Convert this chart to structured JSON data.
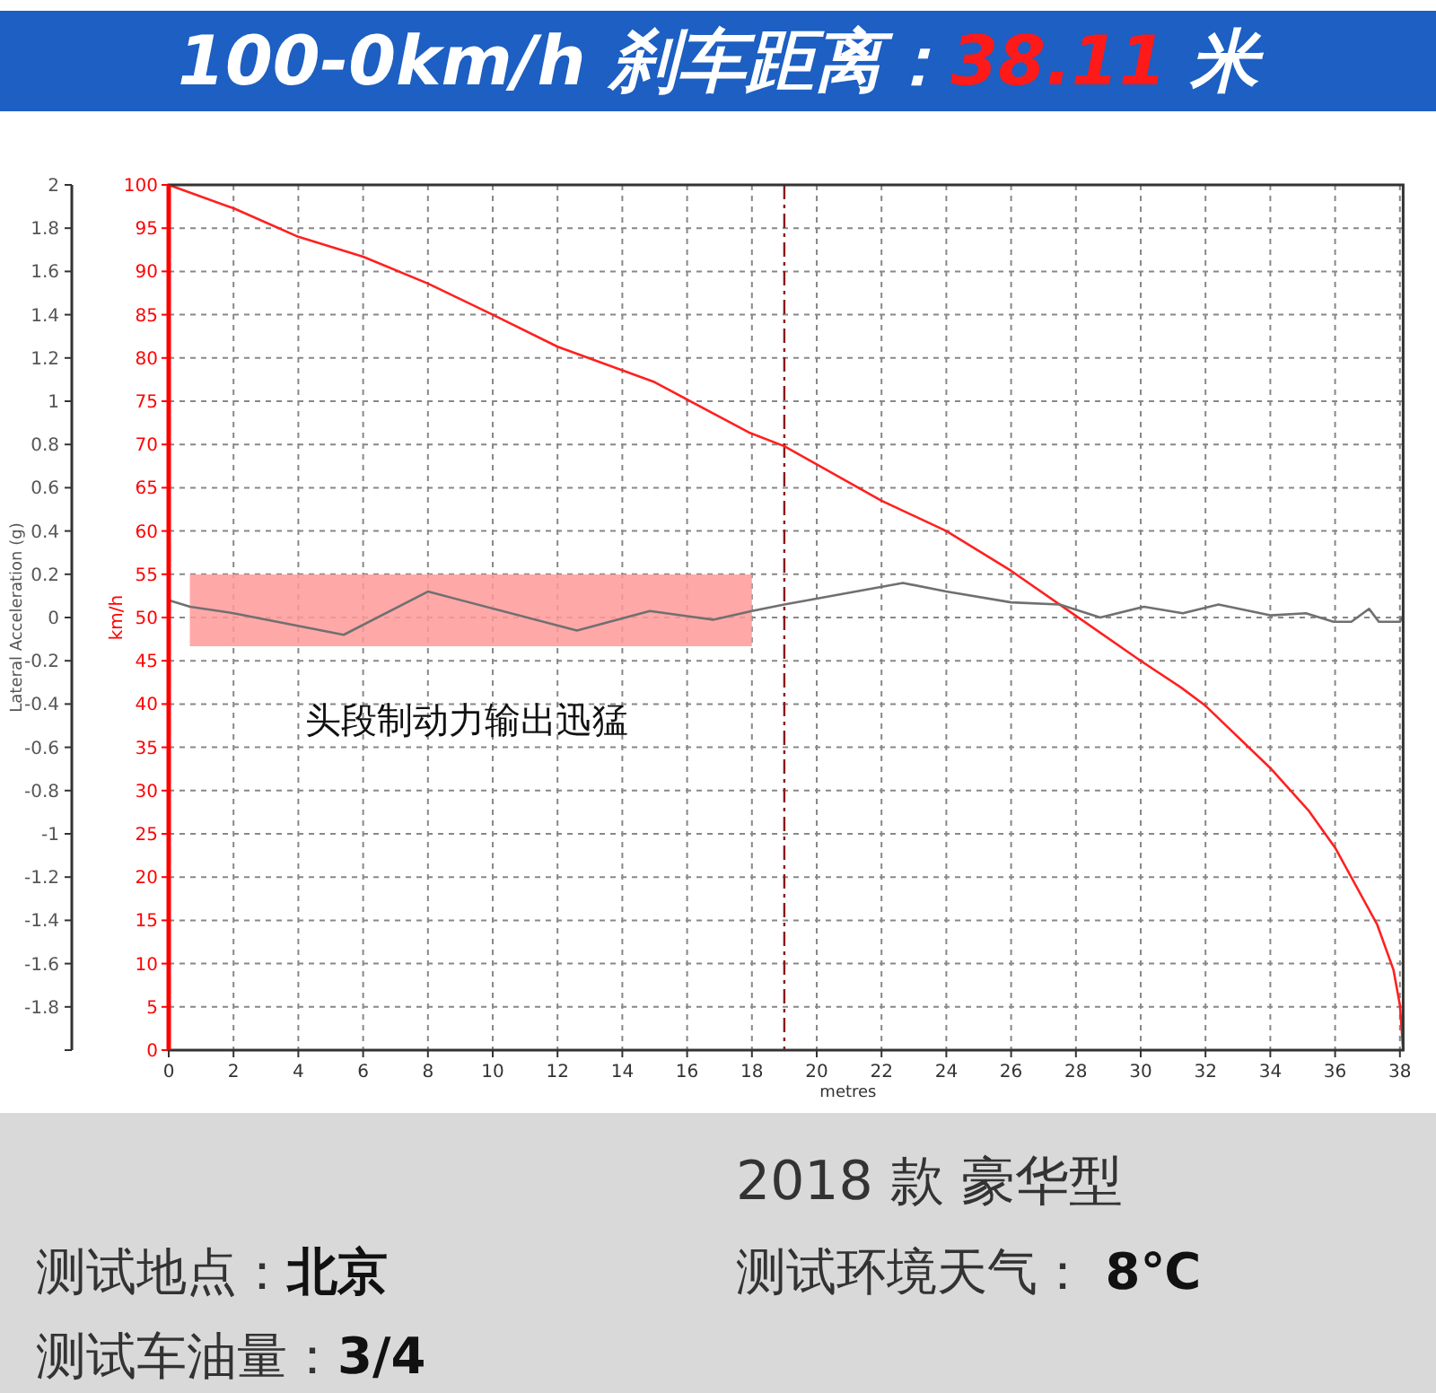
{
  "chart_data": {
    "type": "line",
    "title": "100-0km/h 刹车距离：38.11 米",
    "xlabel": "metres",
    "ylabel": "km/h",
    "y2label": "Lateral Acceleration (g)",
    "xlim": [
      0,
      38.1
    ],
    "xticks": [
      0,
      2,
      4,
      6,
      8,
      10,
      12,
      14,
      16,
      18,
      20,
      22,
      24,
      26,
      28,
      30,
      32,
      34,
      36,
      38
    ],
    "ylim": [
      0,
      100
    ],
    "yticks": [
      0,
      5,
      10,
      15,
      20,
      25,
      30,
      35,
      40,
      45,
      50,
      55,
      60,
      65,
      70,
      75,
      80,
      85,
      90,
      95,
      100
    ],
    "y2lim": [
      -2,
      2
    ],
    "y2ticks": [
      {
        "value": -2,
        "label": null
      },
      -1.8,
      -1.6,
      -1.4,
      -1.2,
      -1,
      -0.8,
      -0.6,
      -0.4,
      -0.2,
      0,
      0.2,
      0.4,
      0.6,
      0.8,
      1,
      1.2,
      1.4,
      1.6,
      1.8,
      2
    ],
    "grid": true,
    "series": [
      {
        "color": "#ff2020",
        "x": [
          0,
          2,
          4,
          6,
          8,
          10,
          12,
          15,
          17.9,
          19,
          22,
          24,
          26,
          28,
          30,
          31.25,
          32,
          34,
          35.2,
          36,
          37.3,
          37.8,
          38,
          38.1
        ],
        "values": [
          100,
          97.3,
          94,
          91.7,
          88.6,
          85,
          81.3,
          77.2,
          71.4,
          69.8,
          63.5,
          60,
          55.4,
          50.2,
          45,
          41.9,
          39.8,
          32.6,
          27.6,
          23.4,
          14.5,
          9.3,
          5.2,
          0
        ]
      },
      {
        "color": "#707070",
        "axis": "y2",
        "x": [
          0,
          0.66,
          2,
          5.4,
          8,
          12.6,
          14.85,
          16.8,
          18,
          19,
          22.66,
          24,
          26,
          27.5,
          28.75,
          30.1,
          31.3,
          32.4,
          34,
          35.1,
          35.95,
          36.5,
          37.05,
          37.35,
          38,
          38.1
        ],
        "values": [
          0.08,
          0.05,
          0.02,
          -0.08,
          0.12,
          -0.06,
          0.03,
          -0.01,
          0.03,
          0.06,
          0.16,
          0.12,
          0.07,
          0.06,
          0,
          0.05,
          0.02,
          0.06,
          0.01,
          0.02,
          -0.02,
          -0.02,
          0.04,
          -0.02,
          -0.02,
          0.01
        ]
      }
    ],
    "ref_lines": [
      {
        "axis": "x",
        "value": 19,
        "color": "#8b1a1a",
        "line_style": "dashed"
      }
    ],
    "bands": [
      {
        "axis": "x",
        "from": 0.65,
        "to": 18,
        "color": "#ff9999"
      }
    ],
    "annotations": [
      "头段制动力输出迅猛",
      "2018 款 豪华型",
      "测试地点：北京",
      "测试环境天气： 8℃",
      "测试车油量：3/4"
    ]
  }
}
